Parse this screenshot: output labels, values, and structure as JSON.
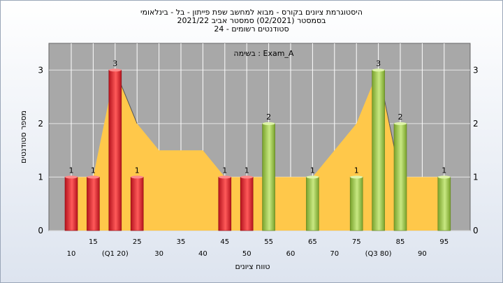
{
  "title_lines": [
    "היסטוגרמת ציונים בקורס - מבוא למחשב שפת פייתון - בל - בינלאומי",
    "בסמסטר  (02/2021)  סמסטר אביב 2021/22",
    "סטודנטים רשומים - 24"
  ],
  "chart_data": {
    "type": "bar",
    "title": "היסטוגרמת ציונים בקורס - מבוא למחשב שפת פייתון - בל - בינלאומי",
    "legend_text": "בשימה : Exam_A",
    "xlabel": "טווח ציונים",
    "ylabel": "מספר סטודנטים",
    "ylim": [
      0,
      3.5
    ],
    "y_ticks": [
      "0",
      "1",
      "2",
      "3"
    ],
    "x_ticks_upper": [
      "15",
      "25",
      "35",
      "45",
      "55",
      "65",
      "75",
      "85",
      "95"
    ],
    "x_ticks_lower": [
      "10",
      "(Q1 20)",
      "30",
      "40",
      "50",
      "60",
      "70",
      "(Q3 80)",
      "90"
    ],
    "bars": [
      {
        "x": 10,
        "value": 1,
        "label": "1",
        "color": "red"
      },
      {
        "x": 15,
        "value": 1,
        "label": "1",
        "color": "red"
      },
      {
        "x": 20,
        "value": 3,
        "label": "3",
        "color": "red"
      },
      {
        "x": 25,
        "value": 1,
        "label": "1",
        "color": "red"
      },
      {
        "x": 45,
        "value": 1,
        "label": "1",
        "color": "red"
      },
      {
        "x": 50,
        "value": 1,
        "label": "1",
        "color": "red"
      },
      {
        "x": 55,
        "value": 2,
        "label": "2",
        "color": "green"
      },
      {
        "x": 65,
        "value": 1,
        "label": "1",
        "color": "green"
      },
      {
        "x": 75,
        "value": 1,
        "label": "1",
        "color": "green"
      },
      {
        "x": 80,
        "value": 3,
        "label": "3",
        "color": "green"
      },
      {
        "x": 85,
        "value": 2,
        "label": "2",
        "color": "green"
      },
      {
        "x": 95,
        "value": 1,
        "label": "1",
        "color": "green"
      }
    ],
    "area": {
      "x": [
        10,
        15,
        20,
        25,
        30,
        35,
        40,
        45,
        50,
        55,
        60,
        65,
        70,
        75,
        80,
        85,
        90,
        95
      ],
      "values": [
        1,
        1,
        3,
        2,
        1.5,
        1.5,
        1.5,
        1,
        1,
        1,
        1,
        1,
        1.5,
        2,
        3,
        1,
        1,
        1
      ],
      "color": "#ffc84a"
    },
    "gray_segments": [
      {
        "x": [
          15,
          20
        ],
        "values": [
          1,
          3
        ]
      },
      {
        "x": [
          80,
          85
        ],
        "values": [
          3,
          1
        ]
      }
    ],
    "colors": {
      "plot_bg": "#a8a8a8",
      "grid": "#ffffff",
      "red_dark": "#b5131d",
      "red_light": "#ff5a5a",
      "green_dark": "#78a22b",
      "green_light": "#c8e882"
    }
  }
}
